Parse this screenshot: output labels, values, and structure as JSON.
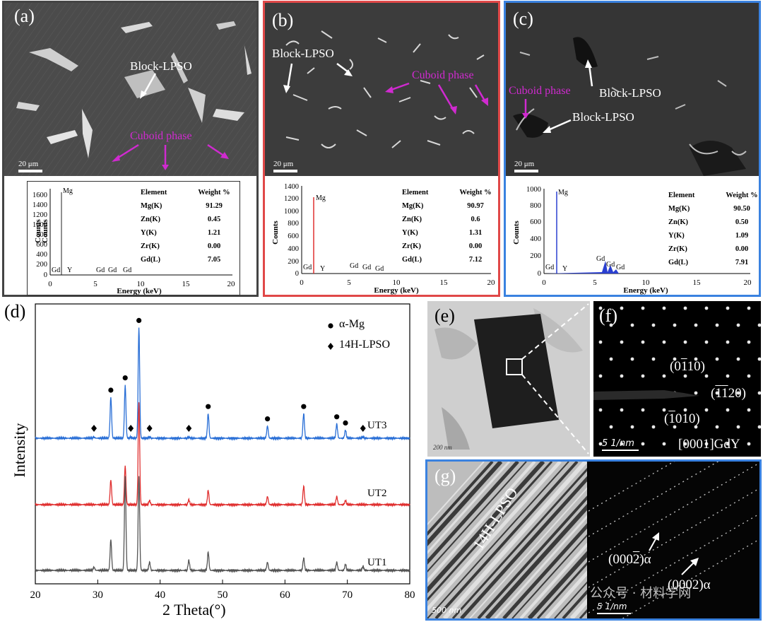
{
  "panels": {
    "a": {
      "letter": "(a)",
      "annotations": [
        "Block-LPSO",
        "Cuboid phase"
      ],
      "scale": "20 μm",
      "eds": {
        "y_label": "Counts",
        "y_label2": "Counts",
        "x_label": "Energy (keV)",
        "y_ticks": [
          "1600",
          "1400",
          "1200",
          "1000",
          "800",
          "600",
          "400",
          "200",
          "0"
        ],
        "x_ticks": [
          "0",
          "5",
          "10",
          "15",
          "20"
        ],
        "peaks": [
          "Mg",
          "Gd",
          "Y",
          "Gd",
          "Gd",
          "Gd"
        ],
        "table_header": [
          "Element",
          "Weight %"
        ],
        "rows": [
          [
            "Mg(K)",
            "91.29"
          ],
          [
            "Zn(K)",
            "0.45"
          ],
          [
            "Y(K)",
            "1.21"
          ],
          [
            "Zr(K)",
            "0.00"
          ],
          [
            "Gd(L)",
            "7.05"
          ]
        ]
      }
    },
    "b": {
      "letter": "(b)",
      "annotations": [
        "Block-LPSO",
        "Cuboid phase"
      ],
      "scale": "20 μm",
      "eds": {
        "y_label": "Counts",
        "x_label": "Energy (keV)",
        "y_ticks": [
          "1400",
          "1200",
          "1000",
          "800",
          "600",
          "400",
          "200",
          "0"
        ],
        "x_ticks": [
          "0",
          "5",
          "10",
          "15",
          "20"
        ],
        "peaks": [
          "Mg",
          "Gd",
          "Y",
          "Gd",
          "Gd",
          "Gd"
        ],
        "table_header": [
          "Element",
          "Weight %"
        ],
        "rows": [
          [
            "Mg(K)",
            "90.97"
          ],
          [
            "Zn(K)",
            "0.6"
          ],
          [
            "Y(K)",
            "1.31"
          ],
          [
            "Zr(K)",
            "0.00"
          ],
          [
            "Gd(L)",
            "7.12"
          ]
        ]
      }
    },
    "c": {
      "letter": "(c)",
      "annotations": [
        "Block-LPSO",
        "Cuboid phase",
        "Block-LPSO"
      ],
      "scale": "20 μm",
      "eds": {
        "y_label": "Counts",
        "x_label": "Energy (keV)",
        "y_ticks": [
          "1000",
          "800",
          "600",
          "400",
          "200",
          "0"
        ],
        "x_ticks": [
          "0",
          "5",
          "10",
          "15",
          "20"
        ],
        "peaks": [
          "Mg",
          "Gd",
          "Y",
          "Gd",
          "Gd",
          "Gd"
        ],
        "table_header": [
          "Element",
          "Weight %"
        ],
        "rows": [
          [
            "Mg(K)",
            "90.50"
          ],
          [
            "Zn(K)",
            "0.50"
          ],
          [
            "Y(K)",
            "1.09"
          ],
          [
            "Zr(K)",
            "0.00"
          ],
          [
            "Gd(L)",
            "7.91"
          ]
        ]
      }
    },
    "d": {
      "letter": "(d)",
      "legend": [
        "α-Mg",
        "14H-LPSO"
      ],
      "curves": [
        "UT3",
        "UT2",
        "UT1"
      ]
    },
    "e": {
      "letter": "(e)",
      "scale": "200 nm"
    },
    "f": {
      "letter": "(f)",
      "spots": [
        "(0̅1̅1̅0)",
        "(1̅1̅ 2 0)",
        "(1̅010)"
      ],
      "spot_texts": [
        "(0110)",
        "(1120)",
        "(1010)"
      ],
      "zone": "[0001]GdY",
      "scale": "5 1/nm"
    },
    "g": {
      "letter": "(g)",
      "label": "14H-LPSO",
      "scale_left": "500 nm",
      "spots": [
        "(0002)α",
        "(0002)α"
      ],
      "scale_right": "5 1/nm",
      "watermark": "公众号 · 材料学网"
    }
  },
  "chart_data": {
    "type": "line",
    "title": "",
    "xlabel": "2 Theta(°)",
    "ylabel": "Intensity",
    "xlim": [
      20,
      80
    ],
    "x_ticks": [
      20,
      30,
      40,
      50,
      60,
      70,
      80
    ],
    "series": [
      {
        "name": "UT3",
        "color": "#2a6fd6",
        "peaks": [
          [
            29.4,
            0.03
          ],
          [
            32.1,
            1.0
          ],
          [
            34.4,
            1.3
          ],
          [
            35.3,
            0.03
          ],
          [
            36.6,
            2.7
          ],
          [
            38.3,
            0.03
          ],
          [
            44.6,
            0.03
          ],
          [
            47.7,
            0.6
          ],
          [
            57.2,
            0.3
          ],
          [
            63.0,
            0.6
          ],
          [
            68.3,
            0.35
          ],
          [
            69.7,
            0.2
          ],
          [
            72.5,
            0.03
          ]
        ]
      },
      {
        "name": "UT2",
        "color": "#e03030",
        "peaks": [
          [
            32.1,
            0.6
          ],
          [
            34.4,
            0.95
          ],
          [
            36.6,
            2.5
          ],
          [
            38.3,
            0.1
          ],
          [
            44.6,
            0.12
          ],
          [
            47.7,
            0.35
          ],
          [
            57.2,
            0.2
          ],
          [
            63.0,
            0.45
          ],
          [
            68.3,
            0.2
          ],
          [
            69.7,
            0.1
          ]
        ]
      },
      {
        "name": "UT1",
        "color": "#555555",
        "peaks": [
          [
            29.4,
            0.08
          ],
          [
            32.1,
            0.75
          ],
          [
            34.4,
            2.3
          ],
          [
            36.6,
            2.3
          ],
          [
            38.3,
            0.2
          ],
          [
            44.6,
            0.25
          ],
          [
            47.7,
            0.45
          ],
          [
            57.2,
            0.2
          ],
          [
            63.0,
            0.3
          ],
          [
            68.3,
            0.2
          ],
          [
            69.7,
            0.15
          ],
          [
            72.5,
            0.1
          ]
        ]
      }
    ],
    "markers": {
      "alpha_Mg": [
        32.1,
        34.4,
        36.6,
        47.7,
        57.2,
        63.0,
        68.3,
        69.7
      ],
      "LPSO_14H": [
        29.4,
        35.3,
        38.3,
        44.6,
        72.5
      ]
    }
  }
}
